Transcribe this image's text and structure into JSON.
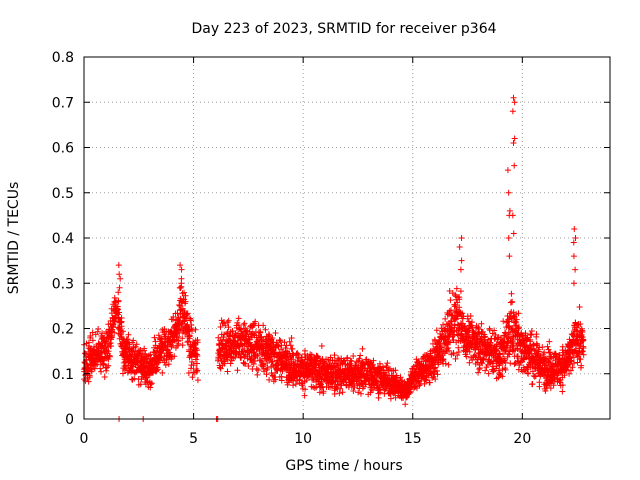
{
  "chart_data": {
    "type": "scatter",
    "title": "Day 223 of 2023, SRMTID for receiver p364",
    "xlabel": "GPS time / hours",
    "ylabel": "SRMTID / TECUs",
    "xlim": [
      0,
      24
    ],
    "ylim": [
      0,
      0.8
    ],
    "xticks": [
      0,
      5,
      10,
      15,
      20
    ],
    "xtick_labels": [
      "0",
      "5",
      "10",
      "15",
      "20"
    ],
    "yticks": [
      0,
      0.1,
      0.2,
      0.3,
      0.4,
      0.5,
      0.6,
      0.7,
      0.8
    ],
    "ytick_labels": [
      "0",
      "0.1",
      "0.2",
      "0.3",
      "0.4",
      "0.5",
      "0.6",
      "0.7",
      "0.8"
    ],
    "grid": true,
    "marker": "plus",
    "color": "#ff0000",
    "gap_hours": [
      5.2,
      6.1
    ],
    "profile": [
      {
        "t": 0.0,
        "base": 0.11,
        "spread": 0.04
      },
      {
        "t": 0.5,
        "base": 0.15,
        "spread": 0.05
      },
      {
        "t": 1.0,
        "base": 0.14,
        "spread": 0.04
      },
      {
        "t": 1.5,
        "base": 0.25,
        "spread": 0.04
      },
      {
        "t": 1.8,
        "base": 0.15,
        "spread": 0.04
      },
      {
        "t": 2.5,
        "base": 0.12,
        "spread": 0.04
      },
      {
        "t": 3.0,
        "base": 0.11,
        "spread": 0.04
      },
      {
        "t": 3.5,
        "base": 0.15,
        "spread": 0.04
      },
      {
        "t": 4.0,
        "base": 0.17,
        "spread": 0.04
      },
      {
        "t": 4.5,
        "base": 0.24,
        "spread": 0.06
      },
      {
        "t": 5.0,
        "base": 0.14,
        "spread": 0.05
      },
      {
        "t": 6.2,
        "base": 0.16,
        "spread": 0.05
      },
      {
        "t": 7.0,
        "base": 0.17,
        "spread": 0.05
      },
      {
        "t": 8.0,
        "base": 0.16,
        "spread": 0.05
      },
      {
        "t": 9.0,
        "base": 0.13,
        "spread": 0.04
      },
      {
        "t": 10.0,
        "base": 0.11,
        "spread": 0.04
      },
      {
        "t": 11.0,
        "base": 0.1,
        "spread": 0.04
      },
      {
        "t": 12.0,
        "base": 0.1,
        "spread": 0.04
      },
      {
        "t": 13.0,
        "base": 0.1,
        "spread": 0.04
      },
      {
        "t": 14.0,
        "base": 0.08,
        "spread": 0.03
      },
      {
        "t": 14.7,
        "base": 0.06,
        "spread": 0.02
      },
      {
        "t": 15.0,
        "base": 0.09,
        "spread": 0.03
      },
      {
        "t": 16.0,
        "base": 0.13,
        "spread": 0.04
      },
      {
        "t": 17.0,
        "base": 0.22,
        "spread": 0.07
      },
      {
        "t": 17.5,
        "base": 0.18,
        "spread": 0.05
      },
      {
        "t": 18.5,
        "base": 0.15,
        "spread": 0.05
      },
      {
        "t": 19.0,
        "base": 0.14,
        "spread": 0.05
      },
      {
        "t": 19.5,
        "base": 0.2,
        "spread": 0.08
      },
      {
        "t": 20.0,
        "base": 0.16,
        "spread": 0.06
      },
      {
        "t": 21.0,
        "base": 0.11,
        "spread": 0.04
      },
      {
        "t": 22.0,
        "base": 0.12,
        "spread": 0.04
      },
      {
        "t": 22.5,
        "base": 0.18,
        "spread": 0.05
      },
      {
        "t": 22.8,
        "base": 0.16,
        "spread": 0.05
      }
    ],
    "spikes": [
      {
        "t": 1.6,
        "values": [
          0.34,
          0.32,
          0.31,
          0.29,
          0.28
        ]
      },
      {
        "t": 4.4,
        "values": [
          0.34,
          0.33,
          0.31,
          0.3,
          0.29
        ]
      },
      {
        "t": 17.2,
        "values": [
          0.4,
          0.38,
          0.35,
          0.33
        ]
      },
      {
        "t": 19.4,
        "values": [
          0.55,
          0.5,
          0.46,
          0.45,
          0.4,
          0.36
        ]
      },
      {
        "t": 19.6,
        "values": [
          0.71,
          0.7,
          0.68,
          0.62,
          0.61,
          0.56,
          0.45,
          0.41
        ]
      },
      {
        "t": 22.4,
        "values": [
          0.42,
          0.4,
          0.39,
          0.36,
          0.33,
          0.3
        ]
      }
    ],
    "zero_points": [
      1.6,
      2.7,
      6.05,
      6.1
    ]
  }
}
